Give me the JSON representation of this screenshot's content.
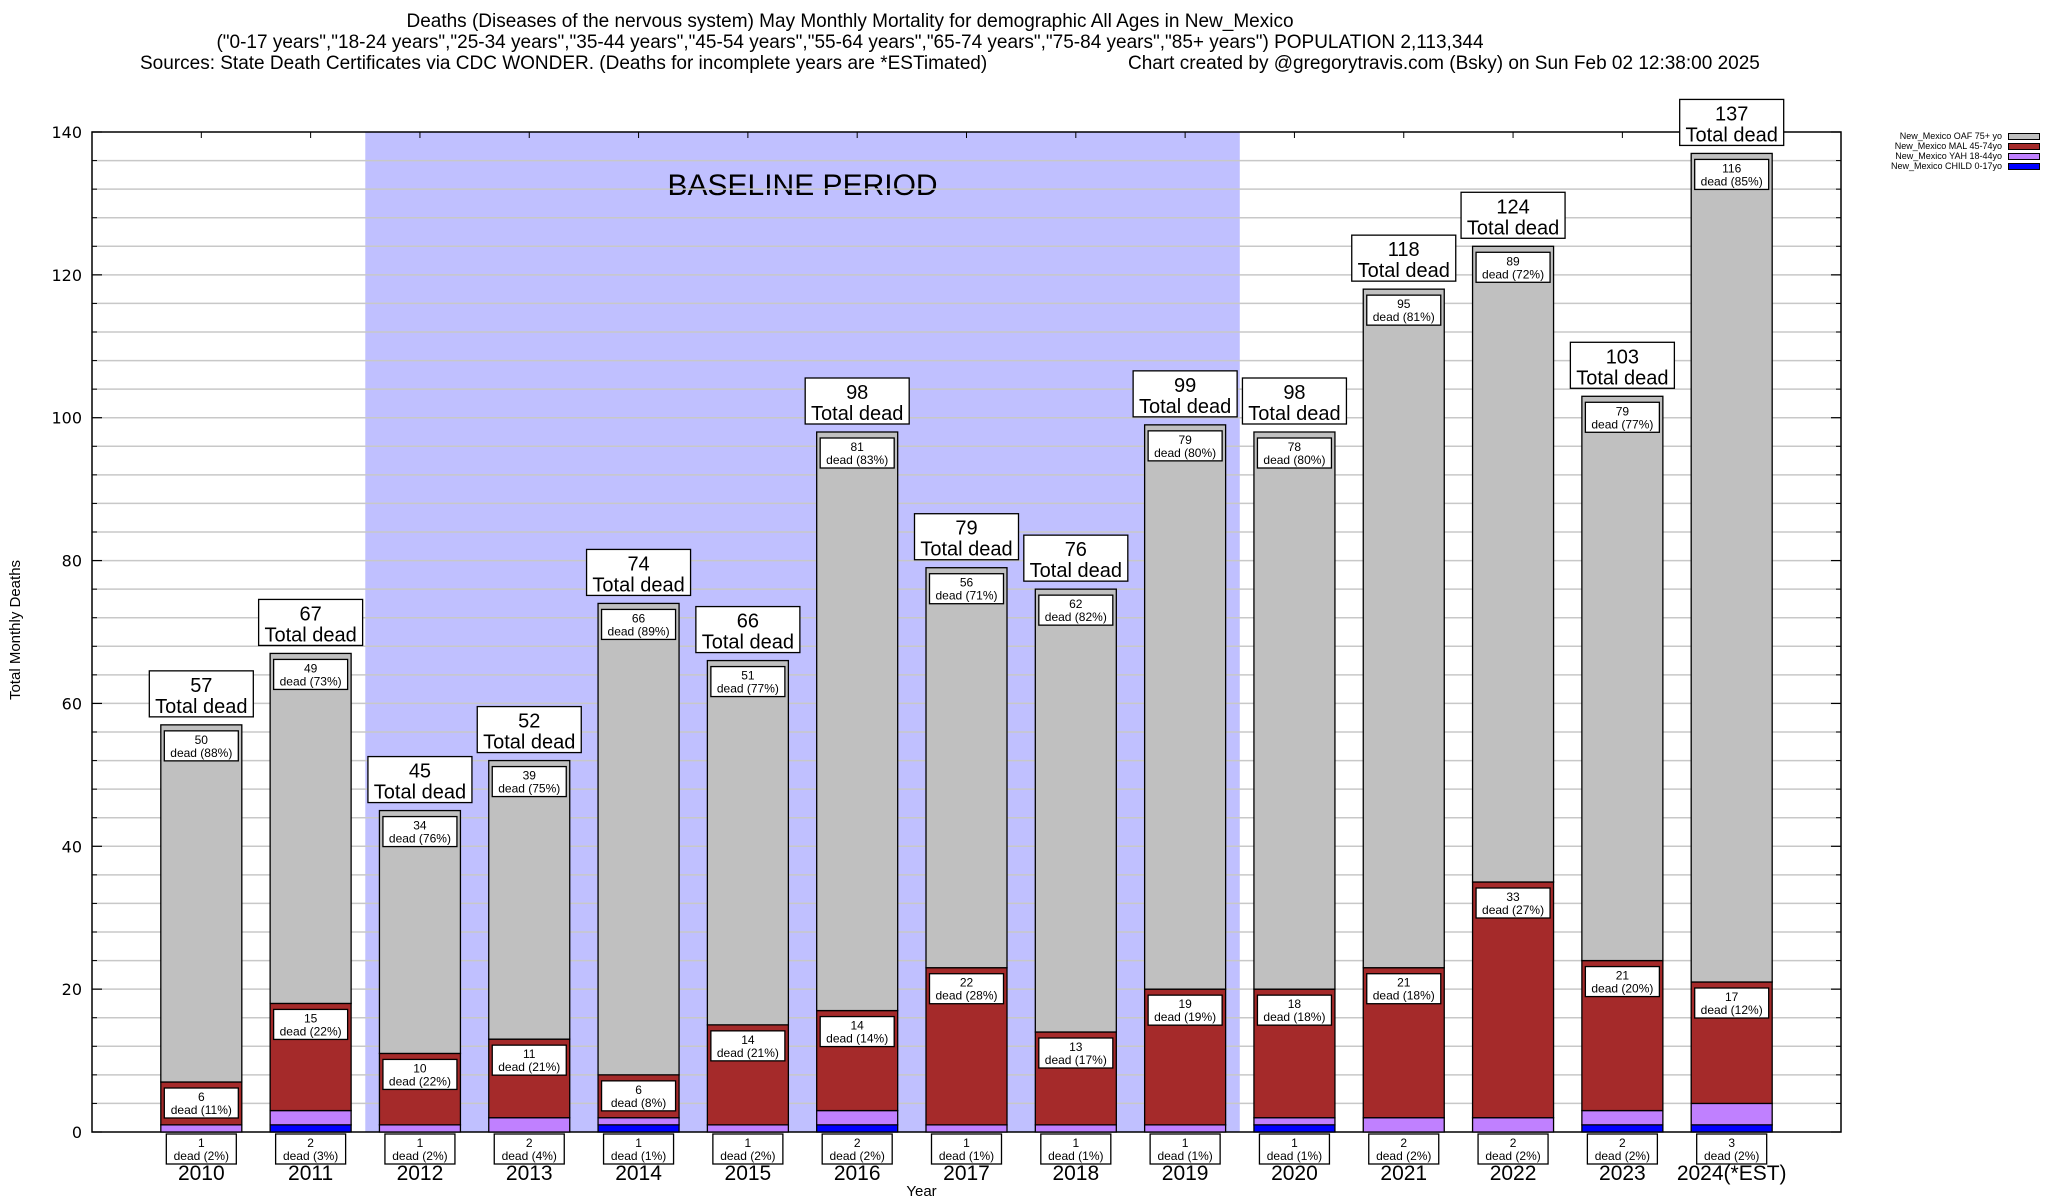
{
  "header": {
    "title_line1": "Deaths (Diseases of the nervous system) May Monthly Mortality for demographic All Ages in New_Mexico",
    "title_line2": "(\"0-17 years\",\"18-24 years\",\"25-34 years\",\"35-44 years\",\"45-54 years\",\"55-64 years\",\"65-74 years\",\"75-84 years\",\"85+ years\") POPULATION 2,113,344",
    "sources": "Sources: State Death Certificates via CDC WONDER. (Deaths for incomplete years are *ESTimated)",
    "credit": "Chart created by @gregorytravis.com (Bsky) on Sun Feb 02 12:38:00 2025"
  },
  "chart_data": {
    "type": "bar",
    "stacked": true,
    "title": "Deaths (Diseases of the nervous system) May Monthly Mortality for demographic All Ages in New_Mexico",
    "xlabel": "Year",
    "ylabel": "Total Monthly Deaths",
    "ylim": [
      0,
      140
    ],
    "yticks": [
      0,
      20,
      40,
      60,
      80,
      100,
      120,
      140
    ],
    "grid": true,
    "grid_step": 4,
    "legend_placement": "top-right outside",
    "categories": [
      "2010",
      "2011",
      "2012",
      "2013",
      "2014",
      "2015",
      "2016",
      "2017",
      "2018",
      "2019",
      "2020",
      "2021",
      "2022",
      "2023",
      "2024(*EST)"
    ],
    "series": [
      {
        "name": "New_Mexico CHILD 0-17yo",
        "color": "#0000FF",
        "values": [
          0,
          1,
          0,
          0,
          1,
          0,
          1,
          0,
          0,
          0,
          1,
          0,
          0,
          1,
          1
        ],
        "labels": []
      },
      {
        "name": "New_Mexico YAH 18-44yo",
        "color": "#C080FF",
        "values": [
          1,
          2,
          1,
          2,
          1,
          1,
          2,
          1,
          1,
          1,
          1,
          2,
          2,
          2,
          3
        ],
        "percent_labels": [
          "(2%)",
          "(3%)",
          "(2%)",
          "(4%)",
          "(1%)",
          "(2%)",
          "(2%)",
          "(1%)",
          "(1%)",
          "(1%)",
          "(1%)",
          "(2%)",
          "(2%)",
          "(2%)",
          "(2%)"
        ]
      },
      {
        "name": "New_Mexico MAL 45-74yo",
        "color": "#A52A2A",
        "values": [
          6,
          15,
          10,
          11,
          6,
          14,
          14,
          22,
          13,
          19,
          18,
          21,
          33,
          21,
          17
        ],
        "percent_labels": [
          "(11%)",
          "(22%)",
          "(22%)",
          "(21%)",
          "(8%)",
          "(21%)",
          "(14%)",
          "(28%)",
          "(17%)",
          "(19%)",
          "(18%)",
          "(18%)",
          "(27%)",
          "(20%)",
          "(12%)"
        ]
      },
      {
        "name": "New_Mexico OAF 75+ yo",
        "color": "#C0C0C0",
        "values": [
          50,
          49,
          34,
          39,
          66,
          51,
          81,
          56,
          62,
          79,
          78,
          95,
          89,
          79,
          116
        ],
        "percent_labels": [
          "(88%)",
          "(73%)",
          "(76%)",
          "(75%)",
          "(89%)",
          "(77%)",
          "(83%)",
          "(71%)",
          "(82%)",
          "(80%)",
          "(80%)",
          "(81%)",
          "(72%)",
          "(77%)",
          "(85%)"
        ]
      }
    ],
    "totals": [
      57,
      67,
      45,
      52,
      74,
      66,
      98,
      79,
      76,
      99,
      98,
      118,
      124,
      103,
      137
    ],
    "total_label_suffix": "Total dead",
    "segment_label_word": "dead",
    "annotations": [
      {
        "text": "BASELINE PERIOD",
        "x_from": "2012",
        "x_to": "2019",
        "color": "#C0C0FF"
      }
    ],
    "legend_order": [
      "New_Mexico OAF 75+ yo",
      "New_Mexico MAL 45-74yo",
      "New_Mexico YAH 18-44yo",
      "New_Mexico CHILD 0-17yo"
    ]
  }
}
